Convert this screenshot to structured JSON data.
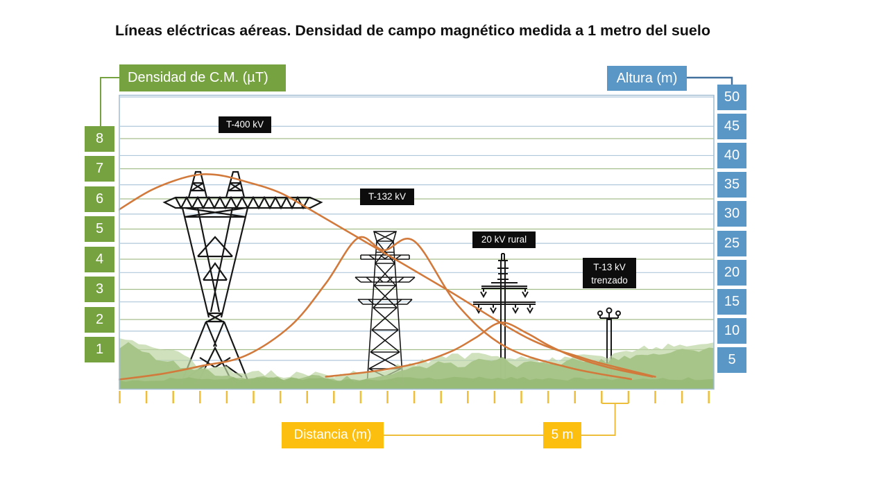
{
  "title": "Líneas eléctricas aéreas. Densidad de campo magnético medida a 1 metro del suelo",
  "left_axis": {
    "label": "Densidad de C.M. (µT)",
    "values": [
      "8",
      "7",
      "6",
      "5",
      "4",
      "3",
      "2",
      "1"
    ]
  },
  "right_axis": {
    "label": "Altura (m)",
    "values": [
      "50",
      "45",
      "40",
      "35",
      "30",
      "25",
      "20",
      "15",
      "10",
      "5"
    ]
  },
  "overlays": {
    "t400": "T-400 kV",
    "t132": "T-132 kV",
    "rural": "20 kV rural",
    "t13_line1": "T-13 kV",
    "t13_line2": "trenzado"
  },
  "bottom_axis": {
    "label": "Distancia (m)",
    "marker": "5 m",
    "ticks_m": {
      "start": 0,
      "end": 110,
      "step": 5
    },
    "marker_span_m": [
      90,
      95
    ]
  },
  "colors": {
    "green": "#76a240",
    "blue": "#5b97c6",
    "blue_dark": "#41719c",
    "yellow": "#fcbf10",
    "tick": "#ecbe39",
    "curve": "#d2793c",
    "grid_green": "#a3bd8a",
    "grid_blue": "#afc7da",
    "border": "#9fbcd1",
    "grass_main": "#a6c487",
    "grass_back": "#bcd4a2",
    "grass_dark": "#97b976",
    "label_bg": "#0d0d0d",
    "tower": "#161616"
  },
  "chart_data": {
    "type": "line",
    "title": "Líneas eléctricas aéreas. Densidad de campo magnético medida a 1 metro del suelo",
    "xlabel": "Distancia (m)",
    "ylabel": "Densidad de C.M. (µT)",
    "x_range_m": [
      0,
      110
    ],
    "y_range_uT": [
      0,
      8
    ],
    "height_axis_m": [
      5,
      50
    ],
    "grid": true,
    "legend_position": "labels-on-plot",
    "series": [
      {
        "name": "T-400 kV",
        "points_m_uT": [
          [
            -0.5,
            5.6
          ],
          [
            6,
            6.3
          ],
          [
            13,
            6.75
          ],
          [
            18,
            6.8
          ],
          [
            24,
            6.55
          ],
          [
            30,
            6.2
          ],
          [
            36,
            5.6
          ],
          [
            49,
            4.25
          ],
          [
            61,
            3.0
          ],
          [
            76,
            1.4
          ],
          [
            86,
            0.75
          ],
          [
            92,
            0.45
          ],
          [
            100,
            0.1
          ]
        ]
      },
      {
        "name": "T-132 kV",
        "points_m_uT": [
          [
            -0.5,
            0.0
          ],
          [
            8,
            0.2
          ],
          [
            15,
            0.45
          ],
          [
            23.5,
            0.8
          ],
          [
            32,
            1.8
          ],
          [
            38.5,
            3.2
          ],
          [
            44.5,
            4.7
          ],
          [
            49.3,
            4.3
          ],
          [
            55,
            4.6
          ],
          [
            63,
            2.5
          ],
          [
            72,
            1.1
          ],
          [
            84,
            0.4
          ],
          [
            95.5,
            0.02
          ]
        ]
      },
      {
        "name": "20 kV rural",
        "points_m_uT": [
          [
            38.5,
            0.1
          ],
          [
            48,
            0.3
          ],
          [
            55.5,
            0.55
          ],
          [
            62,
            0.95
          ],
          [
            66.5,
            1.4
          ],
          [
            71.2,
            1.9
          ],
          [
            76,
            1.55
          ],
          [
            80,
            1.15
          ],
          [
            85,
            0.75
          ],
          [
            91.5,
            0.4
          ],
          [
            99.5,
            0.1
          ]
        ]
      }
    ],
    "tower_positions_m": {
      "T-400 kV": 18,
      "T-132 kV": 49.5,
      "20 kV rural": 71,
      "T-13 kV trenzado": 91.5
    }
  }
}
